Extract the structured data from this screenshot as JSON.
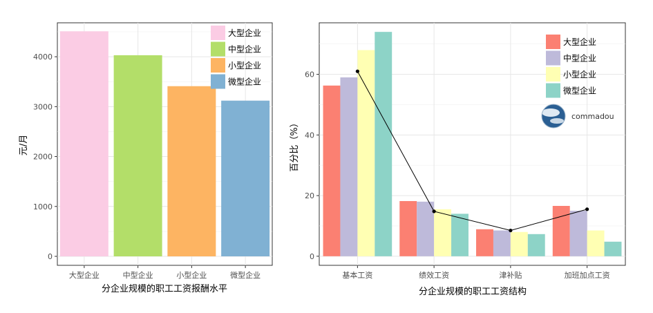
{
  "chart_data": [
    {
      "type": "bar",
      "categories": [
        "大型企业",
        "中型企业",
        "小型企业",
        "微型企业"
      ],
      "values": [
        4510,
        4030,
        3410,
        3120
      ],
      "colors": [
        "#FBCCE4",
        "#B3DE69",
        "#FDB462",
        "#80B1D3"
      ],
      "xlabel": "分企业规模的职工工资报酬水平",
      "ylabel": "元/月",
      "ylim": [
        -180,
        4680
      ],
      "yticks": [
        0,
        1000,
        2000,
        3000,
        4000
      ],
      "grid": true,
      "legend": {
        "position": "top-right",
        "entries": [
          "大型企业",
          "中型企业",
          "小型企业",
          "微型企业"
        ]
      }
    },
    {
      "type": "bar",
      "categories": [
        "基本工资",
        "绩效工资",
        "津补贴",
        "加班加点工资"
      ],
      "series": [
        {
          "name": "大型企业",
          "color": "#FB8072",
          "values": [
            56.3,
            18.2,
            8.9,
            16.6
          ]
        },
        {
          "name": "中型企业",
          "color": "#BEBADA",
          "values": [
            59.0,
            18.0,
            8.5,
            15.0
          ]
        },
        {
          "name": "小型企业",
          "color": "#FFFFB3",
          "values": [
            68.0,
            15.5,
            8.0,
            8.5
          ]
        },
        {
          "name": "微型企业",
          "color": "#8DD3C7",
          "values": [
            74.0,
            14.0,
            7.3,
            4.8
          ]
        }
      ],
      "line": {
        "values": [
          61.0,
          14.8,
          8.5,
          15.5
        ],
        "color": "#000000"
      },
      "xlabel": "分企业规模的职工工资结构",
      "ylabel": "百分比（%）",
      "ylim": [
        -3,
        77
      ],
      "yticks": [
        0,
        20,
        40,
        60
      ],
      "grid": true,
      "legend": {
        "position": "top-right",
        "entries": [
          "大型企业",
          "中型企业",
          "小型企业",
          "微型企业"
        ]
      }
    }
  ],
  "watermark": {
    "text": "commadou",
    "icon": "globe-icon"
  }
}
